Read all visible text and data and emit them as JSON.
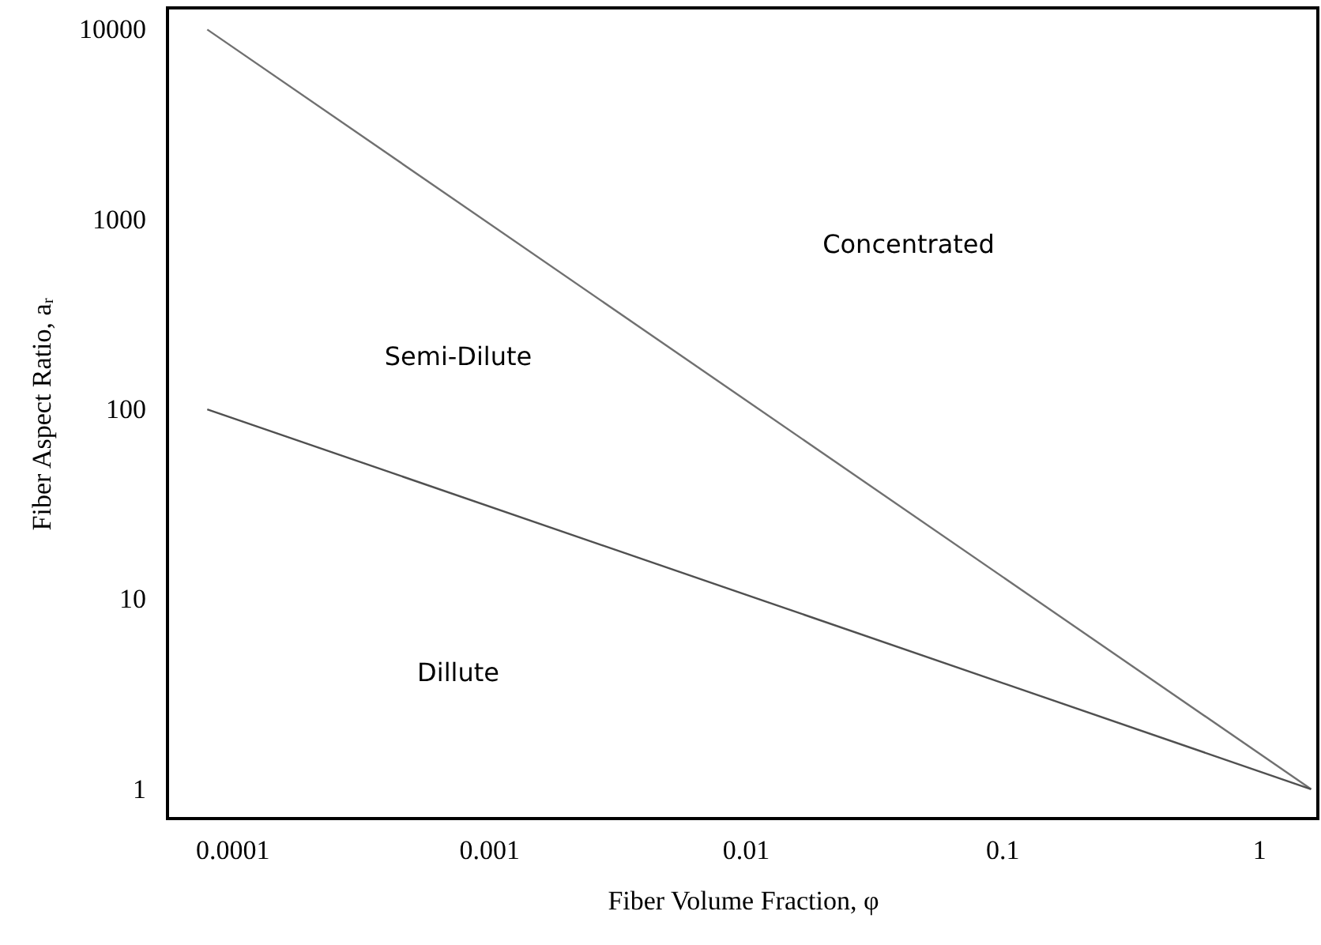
{
  "chart_data": {
    "type": "line",
    "xlabel": "Fiber Volume Fraction, φ",
    "ylabel": "Fiber Aspect Ratio, aᵣ",
    "log": "xy",
    "grid": false,
    "marker": "none",
    "line_style": "solid",
    "xlim": [
      5.6e-05,
      1.7
    ],
    "ylim": [
      0.7,
      13000
    ],
    "xticks": [
      0.0001,
      0.001,
      0.01,
      0.1,
      1
    ],
    "yticks": [
      1,
      10,
      100,
      1000,
      10000
    ],
    "x": [
      8e-05,
      1.6
    ],
    "series": [
      {
        "color": "#707070",
        "values": [
          10000,
          1
        ]
      },
      {
        "color": "#505050",
        "values": [
          100,
          1
        ]
      }
    ],
    "annotations": [
      "Concentrated",
      "Semi-Dilute",
      "Dillute"
    ]
  }
}
